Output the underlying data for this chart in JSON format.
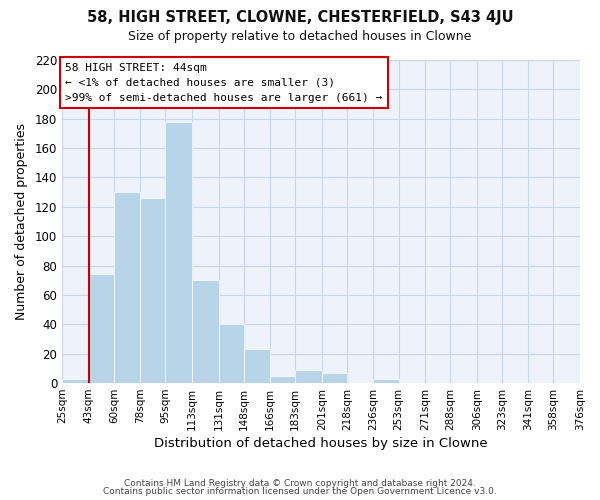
{
  "title": "58, HIGH STREET, CLOWNE, CHESTERFIELD, S43 4JU",
  "subtitle": "Size of property relative to detached houses in Clowne",
  "xlabel": "Distribution of detached houses by size in Clowne",
  "ylabel": "Number of detached properties",
  "bar_edges": [
    25,
    43,
    60,
    78,
    95,
    113,
    131,
    148,
    166,
    183,
    201,
    218,
    236,
    253,
    271,
    288,
    306,
    323,
    341,
    358,
    376
  ],
  "bar_heights": [
    3,
    74,
    130,
    126,
    178,
    70,
    40,
    23,
    5,
    9,
    7,
    0,
    3,
    0,
    0,
    0,
    0,
    0,
    0,
    0,
    1
  ],
  "bar_color": "#b8d4e8",
  "vline_x": 43,
  "vline_color": "#cc0000",
  "tick_labels": [
    "25sqm",
    "43sqm",
    "60sqm",
    "78sqm",
    "95sqm",
    "113sqm",
    "131sqm",
    "148sqm",
    "166sqm",
    "183sqm",
    "201sqm",
    "218sqm",
    "236sqm",
    "253sqm",
    "271sqm",
    "288sqm",
    "306sqm",
    "323sqm",
    "341sqm",
    "358sqm",
    "376sqm"
  ],
  "annotation_title": "58 HIGH STREET: 44sqm",
  "annotation_line1": "← <1% of detached houses are smaller (3)",
  "annotation_line2": ">99% of semi-detached houses are larger (661) →",
  "annotation_box_color": "#ffffff",
  "annotation_box_edge": "#cc0000",
  "ylim": [
    0,
    220
  ],
  "yticks": [
    0,
    20,
    40,
    60,
    80,
    100,
    120,
    140,
    160,
    180,
    200,
    220
  ],
  "footer1": "Contains HM Land Registry data © Crown copyright and database right 2024.",
  "footer2": "Contains public sector information licensed under the Open Government Licence v3.0.",
  "bg_color": "#ffffff",
  "plot_bg_color": "#eef2fa",
  "grid_color": "#c8d4f0"
}
